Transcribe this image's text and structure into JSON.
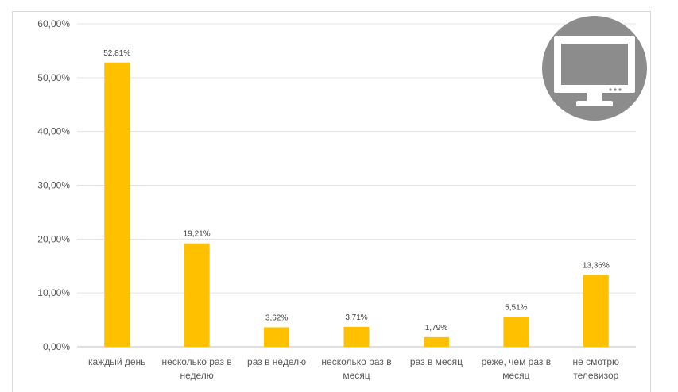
{
  "chart_data": {
    "type": "bar",
    "categories": [
      [
        "каждый день"
      ],
      [
        "несколько раз в",
        "неделю"
      ],
      [
        "раз в неделю"
      ],
      [
        "несколько раз в",
        "месяц"
      ],
      [
        "раз в месяц"
      ],
      [
        "реже, чем раз в",
        "месяц"
      ],
      [
        "не смотрю",
        "телевизор"
      ]
    ],
    "values": [
      52.81,
      19.21,
      3.62,
      3.71,
      1.79,
      5.51,
      13.36
    ],
    "data_labels": [
      "52,81%",
      "19,21%",
      "3,62%",
      "3,71%",
      "1,79%",
      "5,51%",
      "13,36%"
    ],
    "y_ticks": [
      "0,00%",
      "10,00%",
      "20,00%",
      "30,00%",
      "40,00%",
      "50,00%",
      "60,00%"
    ],
    "ylim": [
      0,
      60
    ],
    "grid": true,
    "bar_color": "#FFC000",
    "icon": "tv-monitor-icon"
  }
}
